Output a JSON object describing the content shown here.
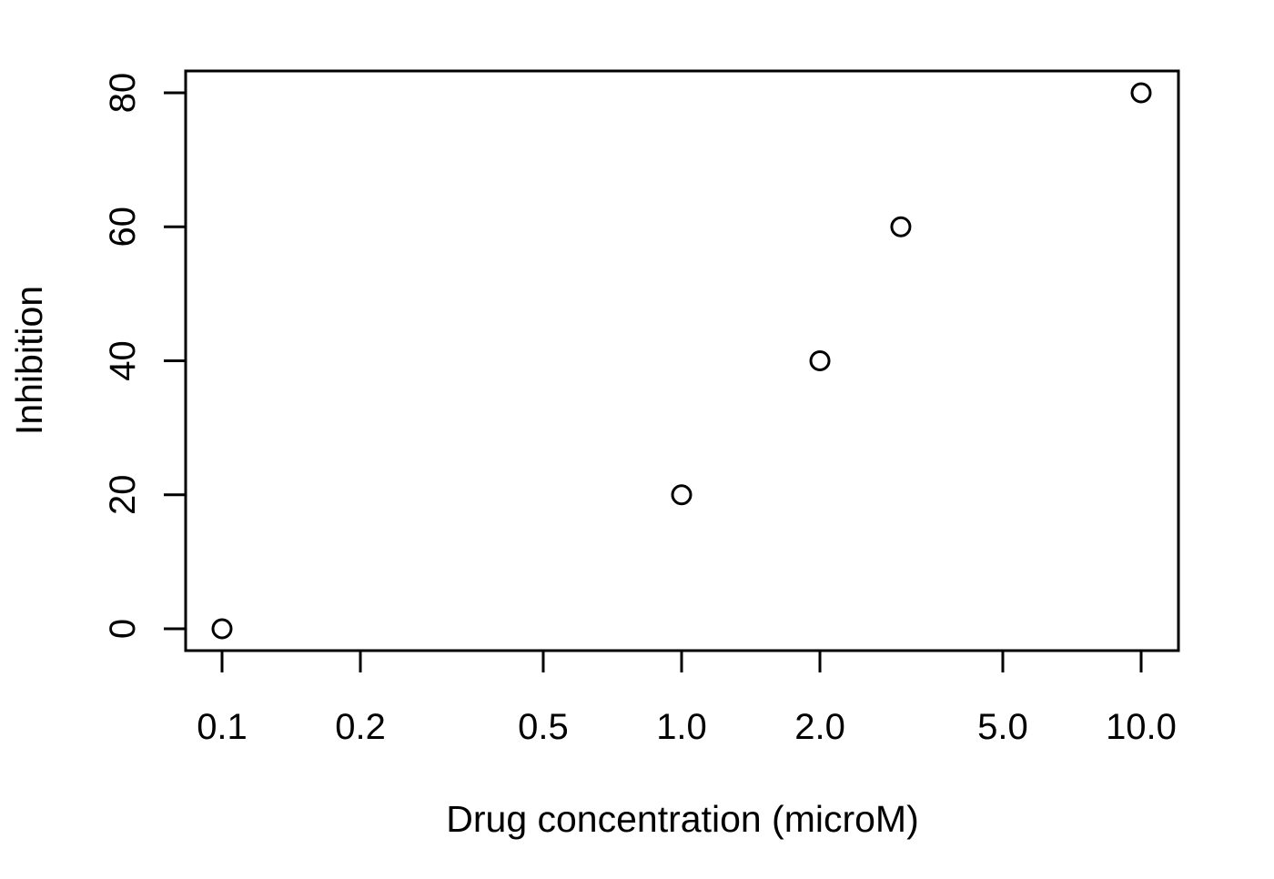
{
  "chart_data": {
    "type": "scatter",
    "title": "",
    "xlabel": "Drug concentration (microM)",
    "ylabel": "Inhibition",
    "x_scale": "log",
    "xlim": [
      0.1,
      10.0
    ],
    "ylim": [
      0,
      80
    ],
    "x_ticks": [
      0.1,
      0.2,
      0.5,
      1.0,
      2.0,
      5.0,
      10.0
    ],
    "x_tick_labels": [
      "0.1",
      "0.2",
      "0.5",
      "1.0",
      "2.0",
      "5.0",
      "10.0"
    ],
    "y_ticks": [
      0,
      20,
      40,
      60,
      80
    ],
    "y_tick_labels": [
      "0",
      "20",
      "40",
      "60",
      "80"
    ],
    "grid": false,
    "marker": "open-circle",
    "series": [
      {
        "x": [
          0.1,
          1.0,
          2.0,
          3.0,
          10.0
        ],
        "y": [
          0,
          20,
          40,
          60,
          80
        ]
      }
    ]
  }
}
